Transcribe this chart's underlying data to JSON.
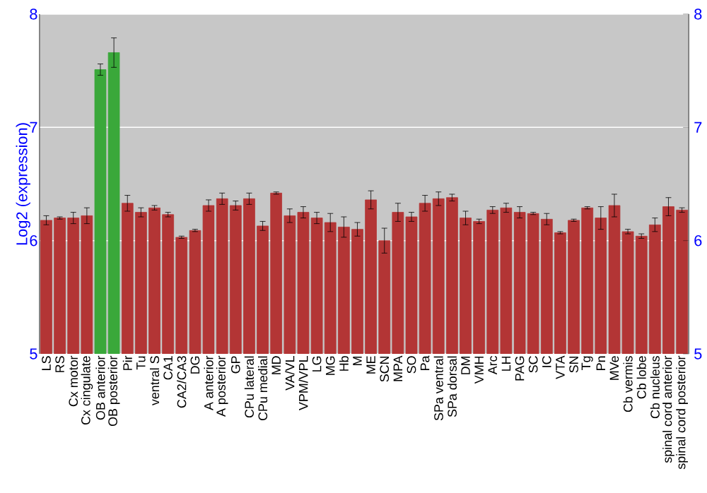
{
  "chart_data": {
    "type": "bar",
    "ylabel": "Log2 (expression)",
    "categories": [
      "LS",
      "RS",
      "Cx motor",
      "Cx cingulate",
      "OB anterior",
      "OB posterior",
      "Pir",
      "Tu",
      "ventral S",
      "CA1",
      "CA2/CA3",
      "DG",
      "A anterior",
      "A posterior",
      "GP",
      "CPu lateral",
      "CPu medial",
      "MD",
      "VA/VL",
      "VPM/VPL",
      "LG",
      "MG",
      "Hb",
      "M",
      "ME",
      "SCN",
      "MPA",
      "SO",
      "Pa",
      "SPa ventral",
      "SPa dorsal",
      "DM",
      "VMH",
      "Arc",
      "LH",
      "PAG",
      "SC",
      "IC",
      "VTA",
      "SN",
      "Tg",
      "Pn",
      "MVe",
      "Cb vermis",
      "Cb lobe",
      "Cb nucleus",
      "spinal cord anterior",
      "spinal cord posterior"
    ],
    "values": [
      6.18,
      6.2,
      6.2,
      6.22,
      7.51,
      7.66,
      6.33,
      6.25,
      6.29,
      6.23,
      6.03,
      6.09,
      6.31,
      6.37,
      6.31,
      6.37,
      6.13,
      6.42,
      6.22,
      6.25,
      6.2,
      6.16,
      6.12,
      6.1,
      6.36,
      6.0,
      6.25,
      6.21,
      6.33,
      6.37,
      6.38,
      6.2,
      6.17,
      6.27,
      6.29,
      6.25,
      6.24,
      6.19,
      6.07,
      6.18,
      6.29,
      6.2,
      6.31,
      6.08,
      6.04,
      6.14,
      6.3,
      6.27
    ],
    "errors": [
      0.04,
      0.01,
      0.05,
      0.07,
      0.05,
      0.13,
      0.07,
      0.04,
      0.02,
      0.02,
      0.01,
      0.01,
      0.05,
      0.05,
      0.04,
      0.05,
      0.04,
      0.01,
      0.06,
      0.05,
      0.05,
      0.08,
      0.09,
      0.06,
      0.08,
      0.11,
      0.08,
      0.04,
      0.07,
      0.06,
      0.03,
      0.06,
      0.02,
      0.03,
      0.04,
      0.05,
      0.01,
      0.05,
      0.01,
      0.01,
      0.01,
      0.1,
      0.1,
      0.02,
      0.02,
      0.06,
      0.08,
      0.02
    ],
    "colors": [
      "#b33535",
      "#b33535",
      "#b33535",
      "#b33535",
      "#3aa83a",
      "#3aa83a",
      "#b33535",
      "#b33535",
      "#b33535",
      "#b33535",
      "#b33535",
      "#b33535",
      "#b33535",
      "#b33535",
      "#b33535",
      "#b33535",
      "#b33535",
      "#b33535",
      "#b33535",
      "#b33535",
      "#b33535",
      "#b33535",
      "#b33535",
      "#b33535",
      "#b33535",
      "#b33535",
      "#b33535",
      "#b33535",
      "#b33535",
      "#b33535",
      "#b33535",
      "#b33535",
      "#b33535",
      "#b33535",
      "#b33535",
      "#b33535",
      "#b33535",
      "#b33535",
      "#b33535",
      "#b33535",
      "#b33535",
      "#b33535",
      "#b33535",
      "#b33535",
      "#b33535",
      "#b33535",
      "#b33535",
      "#b33535"
    ],
    "ylim": [
      5,
      8
    ],
    "yticks": [
      5,
      6,
      7,
      8
    ],
    "y2lim": [
      5,
      8
    ],
    "y2ticks": [
      5,
      6,
      7,
      8
    ],
    "grid": "y"
  }
}
